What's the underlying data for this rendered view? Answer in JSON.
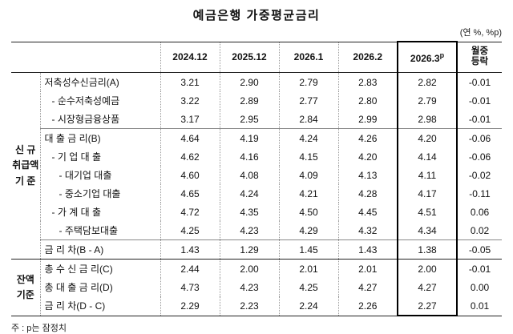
{
  "title": "예금은행 가중평균금리",
  "unit_note": "(연 %, %p)",
  "footnote": "주 : p는 잠정치",
  "table": {
    "columns": [
      "2024.12",
      "2025.12",
      "2026.1",
      "2026.2"
    ],
    "highlight_column": {
      "base": "2026.3",
      "sup": "p"
    },
    "change_column": {
      "line1": "월중",
      "line2": "등락"
    },
    "groups": [
      {
        "name": "신규취급액기준",
        "label_lines": [
          "신 규",
          "취급액",
          "기 준"
        ],
        "rows": [
          {
            "label": "저축성수신금리(A)",
            "indent": 0,
            "values": [
              "3.21",
              "2.90",
              "2.79",
              "2.83",
              "2.82",
              "-0.01"
            ]
          },
          {
            "label": "- 순수저축성예금",
            "indent": 1,
            "values": [
              "3.22",
              "2.89",
              "2.77",
              "2.80",
              "2.79",
              "-0.01"
            ]
          },
          {
            "label": "- 시장형금융상품",
            "indent": 1,
            "values": [
              "3.17",
              "2.95",
              "2.84",
              "2.99",
              "2.98",
              "-0.01"
            ]
          },
          {
            "label": "대 출 금 리(B)",
            "indent": 0,
            "values": [
              "4.64",
              "4.19",
              "4.24",
              "4.26",
              "4.20",
              "-0.06"
            ]
          },
          {
            "label": "- 기 업 대 출",
            "indent": 1,
            "values": [
              "4.62",
              "4.16",
              "4.15",
              "4.20",
              "4.14",
              "-0.06"
            ]
          },
          {
            "label": "- 대기업 대출",
            "indent": 2,
            "values": [
              "4.60",
              "4.08",
              "4.09",
              "4.13",
              "4.11",
              "-0.02"
            ]
          },
          {
            "label": "- 중소기업 대출",
            "indent": 2,
            "values": [
              "4.65",
              "4.24",
              "4.21",
              "4.28",
              "4.17",
              "-0.11"
            ]
          },
          {
            "label": "- 가 계 대 출",
            "indent": 1,
            "values": [
              "4.72",
              "4.35",
              "4.50",
              "4.45",
              "4.51",
              "0.06"
            ]
          },
          {
            "label": "- 주택담보대출",
            "indent": 2,
            "values": [
              "4.25",
              "4.23",
              "4.29",
              "4.32",
              "4.34",
              "0.02"
            ]
          },
          {
            "label": "금 리 차(B - A)",
            "indent": 0,
            "values": [
              "1.43",
              "1.29",
              "1.45",
              "1.43",
              "1.38",
              "-0.05"
            ]
          }
        ]
      },
      {
        "name": "잔액기준",
        "label_lines": [
          "잔액",
          "기준"
        ],
        "rows": [
          {
            "label": "총 수 신 금 리(C)",
            "indent": 0,
            "values": [
              "2.44",
              "2.00",
              "2.01",
              "2.01",
              "2.00",
              "-0.01"
            ]
          },
          {
            "label": "총 대 출 금 리(D)",
            "indent": 0,
            "values": [
              "4.73",
              "4.23",
              "4.25",
              "4.27",
              "4.27",
              "0.00"
            ]
          },
          {
            "label": "금 리 차(D - C)",
            "indent": 0,
            "values": [
              "2.29",
              "2.23",
              "2.24",
              "2.26",
              "2.27",
              "0.01"
            ]
          }
        ]
      }
    ]
  }
}
